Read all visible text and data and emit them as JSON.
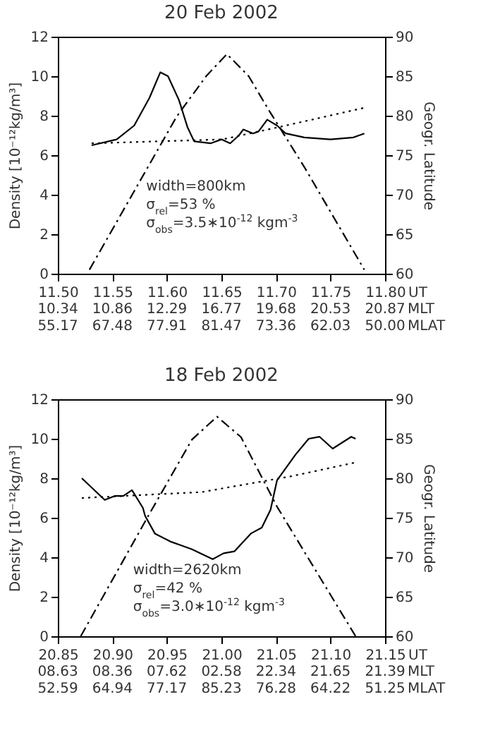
{
  "chart_data": [
    {
      "type": "line",
      "title": "20 Feb 2002",
      "xlabel": "UT",
      "ylabel": "Density  [10⁻¹²kg/m³]",
      "y2label": "Geogr. Latitude",
      "xlim": [
        11.5,
        11.8
      ],
      "xticks": [
        {
          "value": 11.5,
          "label": "11.50"
        },
        {
          "value": 11.55,
          "label": "11.55"
        },
        {
          "value": 11.6,
          "label": "11.60"
        },
        {
          "value": 11.65,
          "label": "11.65"
        },
        {
          "value": 11.7,
          "label": "11.70"
        },
        {
          "value": 11.75,
          "label": "11.75"
        },
        {
          "value": 11.8,
          "label": "11.80"
        }
      ],
      "ylim": [
        0,
        12
      ],
      "yticks": [
        0,
        2,
        4,
        6,
        8,
        10,
        12
      ],
      "y2lim": [
        60,
        90
      ],
      "y2ticks": [
        60,
        65,
        70,
        75,
        80,
        85,
        90
      ],
      "annotations": [
        "width=800km",
        "σ$_{rel}$=53 %",
        "σ$_{obs}$=3.5∗10$^{-12}$  kgm$^{-3}$",
        "MLT",
        "MLAT",
        "10.34",
        "10.86",
        "12.29",
        "16.77",
        "19.68",
        "20.53",
        "20.87",
        "55.17",
        "67.48",
        "77.91",
        "81.47",
        "73.36",
        "62.03",
        "50.00"
      ],
      "series": [
        {
          "color": "#000000",
          "line_style": "solid",
          "x": [
            11.531,
            11.554,
            11.57,
            11.584,
            11.594,
            11.601,
            11.611,
            11.619,
            11.625,
            11.64,
            11.65,
            11.658,
            11.666,
            11.67,
            11.679,
            11.684,
            11.692,
            11.701,
            11.709,
            11.726,
            11.75,
            11.771,
            11.781
          ],
          "values": [
            6.5,
            6.8,
            7.5,
            8.9,
            10.2,
            10.0,
            8.8,
            7.4,
            6.7,
            6.6,
            6.8,
            6.6,
            7.0,
            7.3,
            7.1,
            7.2,
            7.8,
            7.5,
            7.1,
            6.9,
            6.8,
            6.9,
            7.1
          ]
        },
        {
          "color": "#000000",
          "line_style": "dotted",
          "x": [
            11.531,
            11.651,
            11.709,
            11.781
          ],
          "values": [
            6.6,
            6.8,
            7.5,
            8.4
          ]
        },
        {
          "color": "#000000",
          "line_style": "dashdot",
          "axis": "y2",
          "x": [
            11.529,
            11.609,
            11.636,
            11.655,
            11.675,
            11.693,
            11.726,
            11.781
          ],
          "values": [
            60.5,
            79.9,
            85.0,
            87.8,
            85.0,
            80.8,
            73.5,
            60.5
          ]
        }
      ]
    },
    {
      "type": "line",
      "title": "18 Feb 2002",
      "xlabel": "UT",
      "ylabel": "Density  [10⁻¹²kg/m³]",
      "y2label": "Geogr. Latitude",
      "xlim": [
        20.85,
        21.15
      ],
      "xticks": [
        {
          "value": 20.85,
          "label": "20.85"
        },
        {
          "value": 20.9,
          "label": "20.90"
        },
        {
          "value": 20.95,
          "label": "20.95"
        },
        {
          "value": 21.0,
          "label": "21.00"
        },
        {
          "value": 21.05,
          "label": "21.05"
        },
        {
          "value": 21.1,
          "label": "21.10"
        },
        {
          "value": 21.15,
          "label": "21.15"
        }
      ],
      "ylim": [
        0,
        12
      ],
      "yticks": [
        0,
        2,
        4,
        6,
        8,
        10,
        12
      ],
      "y2lim": [
        60,
        90
      ],
      "y2ticks": [
        60,
        65,
        70,
        75,
        80,
        85,
        90
      ],
      "annotations": [
        "width=2620km",
        "σ$_{rel}$=42 %",
        "σ$_{obs}$=3.0∗10$^{-12}$  kgm$^{-3}$",
        "MLT",
        "MLAT",
        "08.63",
        "08.36",
        "07.62",
        "02.58",
        "22.34",
        "21.65",
        "21.39",
        "52.59",
        "64.94",
        "77.17",
        "85.23",
        "76.28",
        "64.22",
        "51.25"
      ],
      "series": [
        {
          "color": "#000000",
          "line_style": "solid",
          "x": [
            20.872,
            20.893,
            20.902,
            20.91,
            20.918,
            20.928,
            20.93,
            20.939,
            20.953,
            20.973,
            20.992,
            21.002,
            21.012,
            21.027,
            21.037,
            21.045,
            21.051,
            21.068,
            21.08,
            21.09,
            21.102,
            21.119,
            21.123
          ],
          "values": [
            8.0,
            6.9,
            7.1,
            7.1,
            7.4,
            6.5,
            6.1,
            5.2,
            4.8,
            4.4,
            3.9,
            4.2,
            4.3,
            5.2,
            5.5,
            6.4,
            7.9,
            9.2,
            10.0,
            10.1,
            9.5,
            10.1,
            10.0
          ]
        },
        {
          "color": "#000000",
          "line_style": "dotted",
          "x": [
            20.872,
            20.982,
            21.064,
            21.123
          ],
          "values": [
            7.0,
            7.3,
            8.1,
            8.8
          ]
        },
        {
          "color": "#000000",
          "line_style": "dashdot",
          "axis": "y2",
          "x": [
            20.871,
            20.934,
            20.973,
            20.996,
            21.018,
            21.051,
            21.123
          ],
          "values": [
            60.0,
            75.5,
            84.9,
            87.8,
            85.2,
            76.4,
            60.0
          ]
        }
      ]
    }
  ]
}
